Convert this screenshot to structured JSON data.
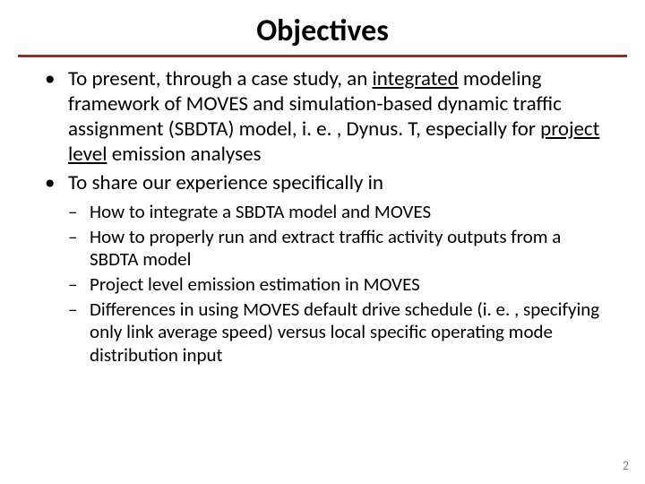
{
  "colors": {
    "rule": "#9a2b1e",
    "text": "#000000",
    "pagenum": "#808080",
    "background": "#ffffff"
  },
  "typography": {
    "title_fontsize": 34,
    "bullet_fontsize": 23,
    "sub_fontsize": 21,
    "pagenum_fontsize": 14,
    "font_family": "Calibri"
  },
  "title": "Objectives",
  "bullets": [
    {
      "pre": "To present, through a case study, an ",
      "u1": "integrated",
      "mid": " modeling framework of MOVES and simulation-based dynamic traffic assignment (SBDTA) model, i. e. , Dynus. T, especially for ",
      "u2": "project level",
      "post": " emission analyses"
    },
    {
      "text": "To share our experience specifically in",
      "sub": [
        "How to integrate a SBDTA model and MOVES",
        "How to properly run and extract traffic activity outputs from a SBDTA model",
        "Project level emission estimation in MOVES",
        "Differences in using MOVES default drive schedule (i. e. , specifying only link average speed) versus local specific operating mode distribution input"
      ]
    }
  ],
  "page_number": "2"
}
